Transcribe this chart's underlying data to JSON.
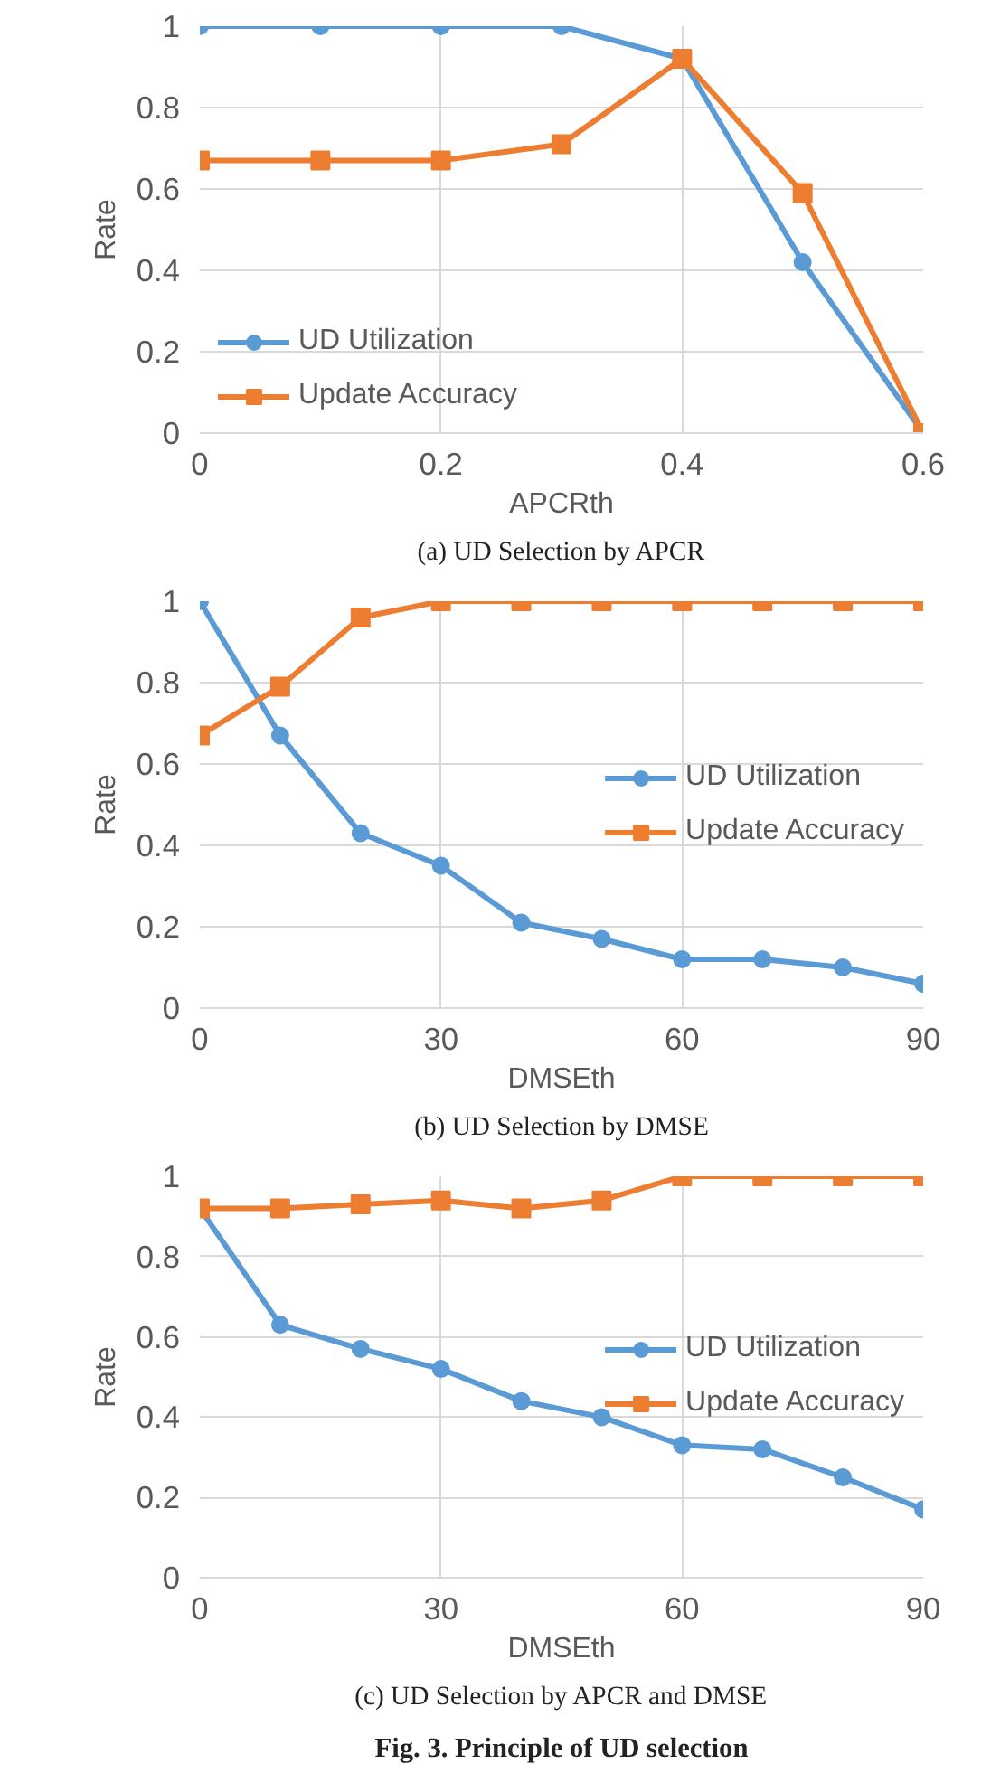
{
  "chart_data": [
    {
      "type": "line",
      "xlabel": "APCRth",
      "ylabel": "Rate",
      "x": [
        0,
        0.1,
        0.2,
        0.3,
        0.4,
        0.5,
        0.6
      ],
      "xlim": [
        0,
        0.6
      ],
      "xticks": [
        0,
        0.2,
        0.4,
        0.6
      ],
      "ylim": [
        0,
        1
      ],
      "yticks": [
        0,
        0.2,
        0.4,
        0.6,
        0.8,
        1
      ],
      "grid": true,
      "legend": "bottom left",
      "series": [
        {
          "name": "UD Utilization",
          "color": "#5b9bd5",
          "marker": "circle",
          "values": [
            1,
            1,
            1,
            1,
            0.92,
            0.42,
            0
          ]
        },
        {
          "name": "Update Accuracy",
          "color": "#ed7d31",
          "marker": "square",
          "values": [
            0.67,
            0.67,
            0.67,
            0.71,
            0.92,
            0.59,
            0
          ]
        }
      ],
      "annotations": [
        "(a) UD Selection by APCR"
      ]
    },
    {
      "type": "line",
      "xlabel": "DMSEth",
      "ylabel": "Rate",
      "x": [
        0,
        10,
        20,
        30,
        40,
        50,
        60,
        70,
        80,
        90
      ],
      "xlim": [
        0,
        90
      ],
      "xticks": [
        0,
        30,
        60,
        90
      ],
      "ylim": [
        0,
        1
      ],
      "yticks": [
        0,
        0.2,
        0.4,
        0.6,
        0.8,
        1
      ],
      "grid": true,
      "legend": "right",
      "series": [
        {
          "name": "UD Utilization",
          "color": "#5b9bd5",
          "marker": "circle",
          "values": [
            1,
            0.67,
            0.43,
            0.35,
            0.21,
            0.17,
            0.12,
            0.12,
            0.1,
            0.06
          ]
        },
        {
          "name": "Update Accuracy",
          "color": "#ed7d31",
          "marker": "square",
          "values": [
            0.67,
            0.79,
            0.96,
            1,
            1,
            1,
            1,
            1,
            1,
            1
          ]
        }
      ],
      "annotations": [
        "(b) UD Selection by DMSE"
      ]
    },
    {
      "type": "line",
      "xlabel": "DMSEth",
      "ylabel": "Rate",
      "x": [
        0,
        10,
        20,
        30,
        40,
        50,
        60,
        70,
        80,
        90
      ],
      "xlim": [
        0,
        90
      ],
      "xticks": [
        0,
        30,
        60,
        90
      ],
      "ylim": [
        0,
        1
      ],
      "yticks": [
        0,
        0.2,
        0.4,
        0.6,
        0.8,
        1
      ],
      "grid": true,
      "legend": "right",
      "series": [
        {
          "name": "UD Utilization",
          "color": "#5b9bd5",
          "marker": "circle",
          "values": [
            0.92,
            0.63,
            0.57,
            0.52,
            0.44,
            0.4,
            0.33,
            0.32,
            0.25,
            0.17
          ]
        },
        {
          "name": "Update Accuracy",
          "color": "#ed7d31",
          "marker": "square",
          "values": [
            0.92,
            0.92,
            0.93,
            0.94,
            0.92,
            0.94,
            1,
            1,
            1,
            1
          ]
        }
      ],
      "annotations": [
        "(c) UD Selection by APCR and DMSE",
        "Fig. 3. Principle of UD selection"
      ]
    }
  ]
}
